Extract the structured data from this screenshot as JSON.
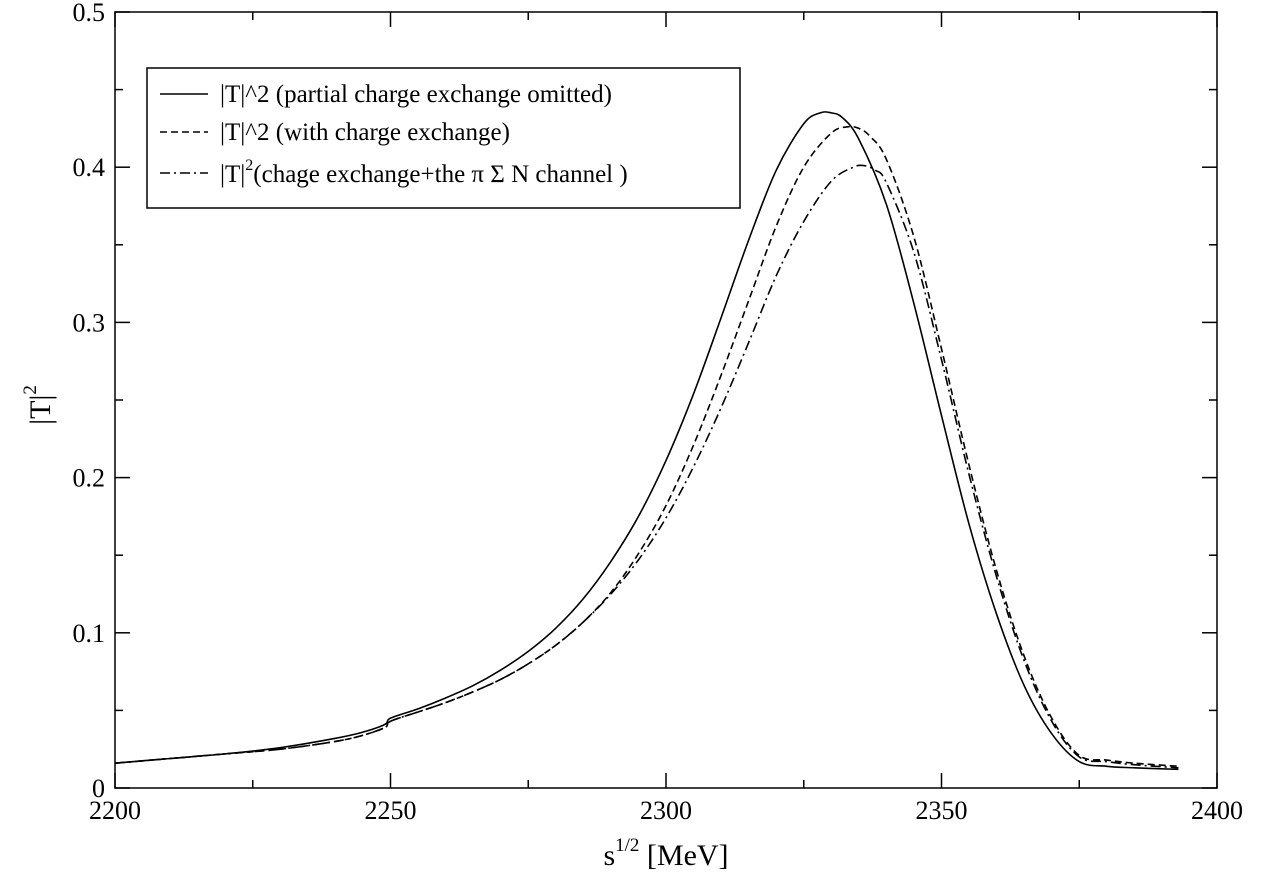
{
  "chart_data": {
    "type": "line",
    "title": "",
    "xlabel": {
      "base": "s",
      "sup": "1/2",
      "rest": " [MeV]"
    },
    "ylabel": {
      "base": "|T|",
      "sup": "2"
    },
    "xlim": [
      2200,
      2400
    ],
    "ylim": [
      0,
      0.5
    ],
    "xticks": [
      2200,
      2250,
      2300,
      2350,
      2400
    ],
    "xtick_labels": [
      "2200",
      "2250",
      "2300",
      "2350",
      "2400"
    ],
    "yticks": [
      0,
      0.1,
      0.2,
      0.3,
      0.4,
      0.5
    ],
    "ytick_labels": [
      "0",
      "0.1",
      "0.2",
      "0.3",
      "0.4",
      "0.5"
    ],
    "grid": false,
    "legend_position": "top-left",
    "series": [
      {
        "name": "|T|^2 (partial charge exchange omitted)",
        "dash": "solid",
        "color": "#000000",
        "x": [
          2200,
          2210,
          2220,
          2230,
          2240,
          2245,
          2249,
          2250,
          2255,
          2260,
          2265,
          2270,
          2275,
          2280,
          2285,
          2290,
          2295,
          2300,
          2305,
          2310,
          2315,
          2320,
          2325,
          2328,
          2330,
          2332,
          2335,
          2340,
          2345,
          2350,
          2355,
          2360,
          2365,
          2370,
          2375,
          2380,
          2385,
          2393
        ],
        "y": [
          0.016,
          0.019,
          0.022,
          0.026,
          0.032,
          0.036,
          0.041,
          0.045,
          0.051,
          0.058,
          0.066,
          0.076,
          0.088,
          0.103,
          0.122,
          0.146,
          0.175,
          0.211,
          0.254,
          0.303,
          0.353,
          0.398,
          0.428,
          0.435,
          0.435,
          0.432,
          0.418,
          0.376,
          0.312,
          0.24,
          0.17,
          0.112,
          0.066,
          0.035,
          0.017,
          0.014,
          0.013,
          0.012
        ]
      },
      {
        "name": "|T|^2 (with charge exchange)",
        "dash": "dashed",
        "color": "#000000",
        "x": [
          2200,
          2210,
          2220,
          2230,
          2240,
          2245,
          2249,
          2250,
          2255,
          2260,
          2265,
          2270,
          2275,
          2280,
          2285,
          2290,
          2295,
          2300,
          2305,
          2310,
          2315,
          2320,
          2325,
          2330,
          2333,
          2335,
          2337,
          2340,
          2345,
          2350,
          2355,
          2360,
          2365,
          2370,
          2375,
          2380,
          2385,
          2393
        ],
        "y": [
          0.016,
          0.019,
          0.022,
          0.025,
          0.03,
          0.034,
          0.039,
          0.043,
          0.049,
          0.055,
          0.062,
          0.07,
          0.08,
          0.092,
          0.107,
          0.126,
          0.151,
          0.182,
          0.221,
          0.266,
          0.314,
          0.362,
          0.4,
          0.422,
          0.426,
          0.425,
          0.42,
          0.405,
          0.355,
          0.283,
          0.208,
          0.14,
          0.085,
          0.045,
          0.021,
          0.018,
          0.016,
          0.014
        ]
      },
      {
        "name": "|T|^2 (chage exchange+the π Σ N channel )",
        "dash": "dashdot",
        "color": "#000000",
        "x": [
          2200,
          2210,
          2220,
          2230,
          2240,
          2245,
          2249,
          2250,
          2255,
          2260,
          2265,
          2270,
          2275,
          2280,
          2285,
          2290,
          2295,
          2300,
          2305,
          2310,
          2315,
          2320,
          2325,
          2330,
          2334,
          2336,
          2338,
          2340,
          2345,
          2350,
          2355,
          2360,
          2365,
          2370,
          2375,
          2380,
          2385,
          2393
        ],
        "y": [
          0.016,
          0.019,
          0.022,
          0.025,
          0.03,
          0.034,
          0.039,
          0.043,
          0.049,
          0.055,
          0.062,
          0.07,
          0.08,
          0.092,
          0.107,
          0.125,
          0.147,
          0.174,
          0.207,
          0.245,
          0.287,
          0.33,
          0.365,
          0.391,
          0.4,
          0.401,
          0.398,
          0.39,
          0.345,
          0.276,
          0.202,
          0.136,
          0.082,
          0.043,
          0.02,
          0.017,
          0.015,
          0.013
        ]
      }
    ],
    "legend": [
      {
        "base": "|T|^2 (partial charge exchange omitted)",
        "sup": "",
        "rest": ""
      },
      {
        "base": "|T|^2 (with charge exchange)",
        "sup": "",
        "rest": ""
      },
      {
        "base": "|T|",
        "sup": "2",
        "rest": "(chage exchange+the  π Σ N channel )"
      }
    ]
  }
}
